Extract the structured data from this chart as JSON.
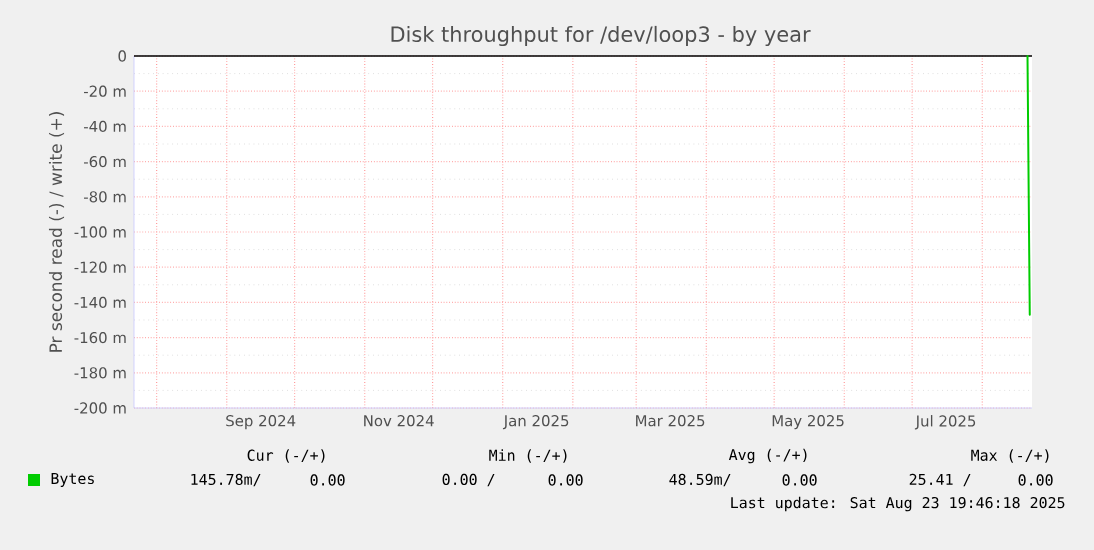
{
  "chart_data": {
    "type": "line",
    "title": "Disk throughput for /dev/loop3 - by year",
    "ylabel": "Pr second read (-) / write (+)",
    "xlim": [
      "2024-07-22",
      "2025-08-23"
    ],
    "ylim": [
      -200,
      0
    ],
    "xticks": [
      {
        "value": "2024-08-01",
        "label": null
      },
      {
        "value": "2024-09-01",
        "label": null
      },
      {
        "value": "2024-10-01",
        "label": null
      },
      {
        "value": "2024-11-01",
        "label": null
      },
      {
        "value": "2024-12-01",
        "label": null
      },
      {
        "value": "2025-01-01",
        "label": null
      },
      {
        "value": "2025-02-01",
        "label": null
      },
      {
        "value": "2025-03-01",
        "label": null
      },
      {
        "value": "2025-04-01",
        "label": null
      },
      {
        "value": "2025-05-01",
        "label": null
      },
      {
        "value": "2025-06-01",
        "label": null
      },
      {
        "value": "2025-07-01",
        "label": null
      },
      {
        "value": "2025-08-01",
        "label": null
      },
      {
        "value": "2024-09-16",
        "label": "Sep 2024"
      },
      {
        "value": "2024-11-16",
        "label": "Nov 2024"
      },
      {
        "value": "2025-01-16",
        "label": "Jan 2025"
      },
      {
        "value": "2025-03-16",
        "label": "Mar 2025"
      },
      {
        "value": "2025-05-16",
        "label": "May 2025"
      },
      {
        "value": "2025-07-16",
        "label": "Jul 2025"
      }
    ],
    "yticks": [
      {
        "value": -200,
        "label": "-200 m"
      },
      {
        "value": -180,
        "label": "-180 m"
      },
      {
        "value": -160,
        "label": "-160 m"
      },
      {
        "value": -140,
        "label": "-140 m"
      },
      {
        "value": -120,
        "label": "-120 m"
      },
      {
        "value": -100,
        "label": "-100 m"
      },
      {
        "value": -80,
        "label": "-80 m"
      },
      {
        "value": -60,
        "label": "-60 m"
      },
      {
        "value": -40,
        "label": "-40 m"
      },
      {
        "value": -20,
        "label": "-20 m"
      },
      0
    ],
    "series": [
      {
        "name": "Bytes",
        "color": "#00cc00",
        "x": [
          "2025-08-21",
          "2025-08-22"
        ],
        "values": [
          0,
          -147
        ]
      }
    ],
    "ref_lines": [
      {
        "axis": "y",
        "value": 0,
        "color": "#000000"
      }
    ],
    "grid": true,
    "legend": "bottom left",
    "annotations": [
      "Cur (-/+)",
      "Min (-/+)",
      "Avg (-/+)",
      "Max (-/+)",
      "145.78m/",
      "0.00",
      "0.00 /",
      "0.00",
      "48.59m/",
      "0.00",
      "25.41 /",
      "0.00",
      "Last update: Sat Aug 23 19:46:18 2025"
    ]
  }
}
